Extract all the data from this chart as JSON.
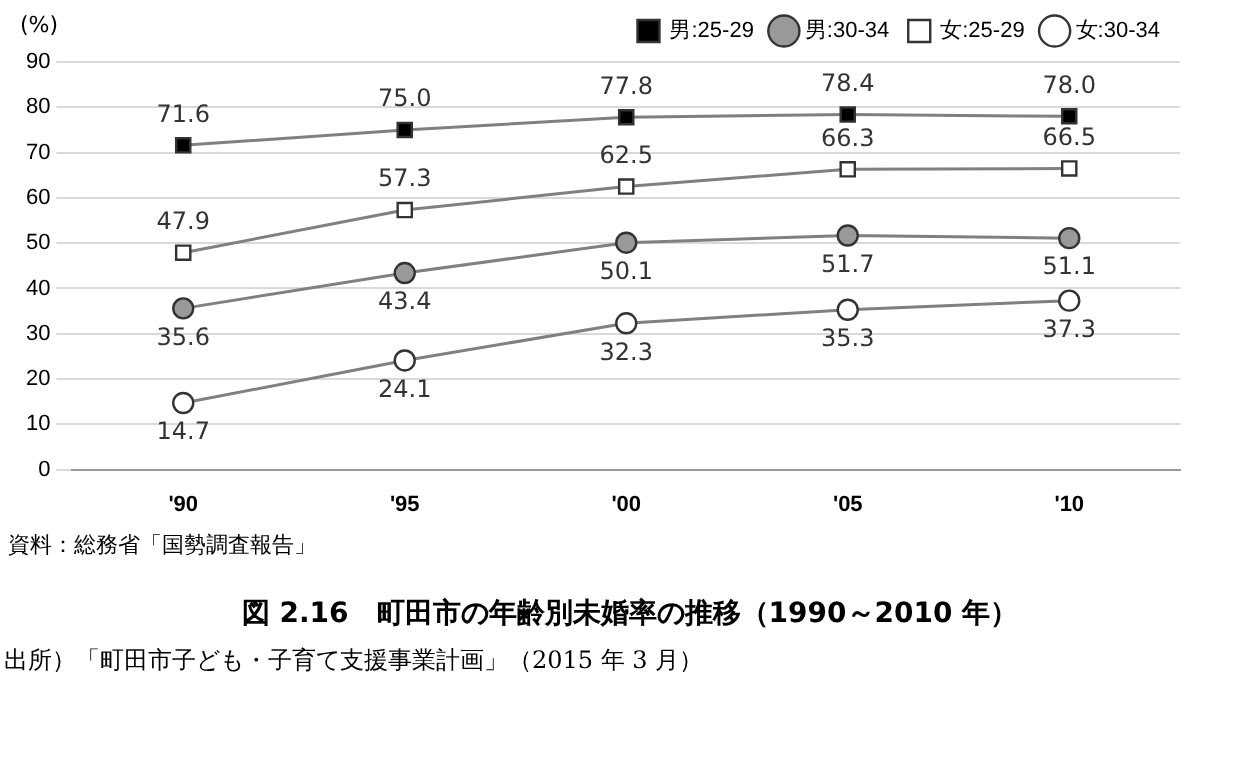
{
  "chart_data": {
    "type": "line",
    "title": "図 2.16　町田市の年齢別未婚率の推移（1990～2010 年）",
    "ylabel": "(%)",
    "categories": [
      "'90",
      "'95",
      "'00",
      "'05",
      "'10"
    ],
    "series": [
      {
        "name": "男:25-29",
        "color": "#000000",
        "marker": "square",
        "values": [
          71.6,
          75.0,
          77.8,
          78.4,
          78.0
        ],
        "value_labels": [
          "71.6",
          "75.0",
          "77.8",
          "78.4",
          "78.0"
        ]
      },
      {
        "name": "男:30-34",
        "color": "#999999",
        "marker": "circle",
        "values": [
          35.6,
          43.4,
          50.1,
          51.7,
          51.1
        ],
        "value_labels": [
          "35.6",
          "43.4",
          "50.1",
          "51.7",
          "51.1"
        ]
      },
      {
        "name": "女:25-29",
        "color": "#ffffff",
        "marker": "square",
        "values": [
          47.9,
          57.3,
          62.5,
          66.3,
          66.5
        ],
        "value_labels": [
          "47.9",
          "57.3",
          "62.5",
          "66.3",
          "66.5"
        ]
      },
      {
        "name": "女:30-34",
        "color": "#ffffff",
        "marker": "circle",
        "values": [
          14.7,
          24.1,
          32.3,
          35.3,
          37.3
        ],
        "value_labels": [
          "14.7",
          "24.1",
          "32.3",
          "35.3",
          "37.3"
        ]
      }
    ],
    "ylim": [
      0,
      90
    ],
    "yticks": [
      0,
      10,
      20,
      30,
      40,
      50,
      60,
      70,
      80,
      90
    ],
    "grid": "y",
    "legend": "top",
    "annotations": [
      "資料：総務省「国勢調査報告」",
      "出所）「町田市子ども・子育て支援事業計画」（2015 年 3 月）"
    ]
  }
}
